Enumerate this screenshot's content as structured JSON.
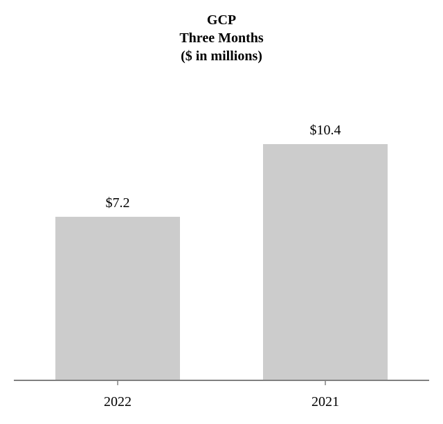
{
  "chart_data": {
    "type": "bar",
    "title": [
      "GCP",
      "Three Months",
      "($ in millions)"
    ],
    "categories": [
      "2022",
      "2021"
    ],
    "values": [
      7.2,
      10.4
    ],
    "data_labels": [
      "$7.2",
      "$10.4"
    ],
    "xlabel": "",
    "ylabel": "",
    "ylim": [
      0,
      10.4
    ],
    "grid": false,
    "legend": "none",
    "bar_color": "#cccccc",
    "axis_color": "#808080"
  }
}
